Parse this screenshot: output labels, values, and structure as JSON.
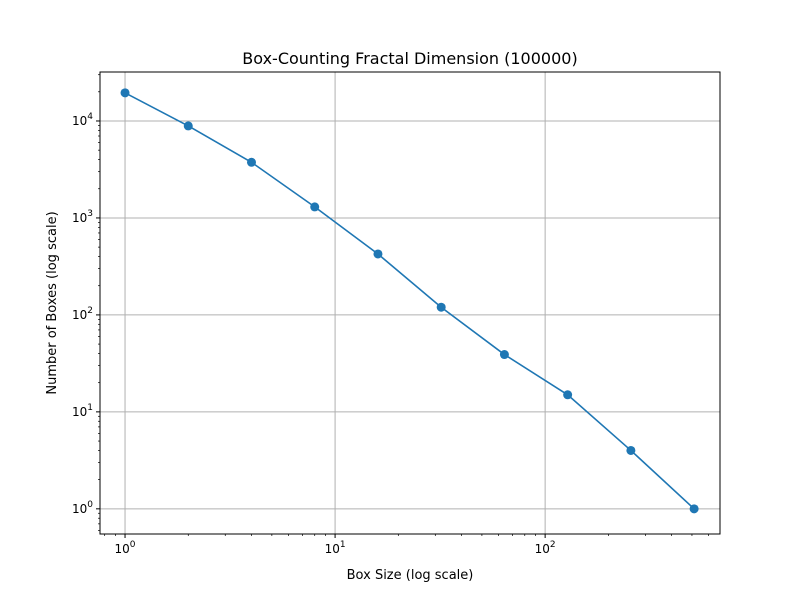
{
  "chart_data": {
    "type": "line",
    "title": "Box-Counting Fractal Dimension (100000)",
    "xlabel": "Box Size (log scale)",
    "ylabel": "Number of Boxes (log scale)",
    "xscale": "log",
    "yscale": "log",
    "xlim": [
      0.76,
      680
    ],
    "ylim": [
      0.55,
      32000
    ],
    "grid": true,
    "x_ticks": [
      {
        "base": "10",
        "exp": "0",
        "value": 1
      },
      {
        "base": "10",
        "exp": "1",
        "value": 10
      },
      {
        "base": "10",
        "exp": "2",
        "value": 100
      }
    ],
    "y_ticks": [
      {
        "base": "10",
        "exp": "0",
        "value": 1
      },
      {
        "base": "10",
        "exp": "1",
        "value": 10
      },
      {
        "base": "10",
        "exp": "2",
        "value": 100
      },
      {
        "base": "10",
        "exp": "3",
        "value": 1000
      },
      {
        "base": "10",
        "exp": "4",
        "value": 10000
      }
    ],
    "series": [
      {
        "color": "#1f77b4",
        "marker": "circle",
        "x": [
          1,
          2,
          4,
          8,
          16,
          32,
          64,
          128,
          256,
          512
        ],
        "y": [
          19500,
          8900,
          3750,
          1300,
          425,
          120,
          39,
          15,
          4,
          1
        ]
      }
    ]
  }
}
